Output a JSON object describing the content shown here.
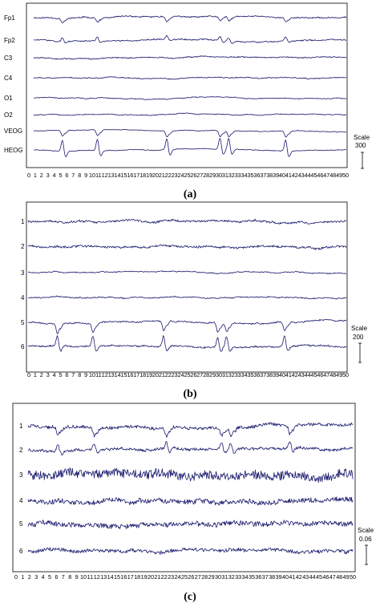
{
  "chart_data": [
    {
      "type": "line",
      "caption": "(a)",
      "channels": [
        "Fp1",
        "Fp2",
        "C3",
        "C4",
        "O1",
        "O2",
        "VEOG",
        "HEOG"
      ],
      "x_ticks": [
        0,
        1,
        2,
        3,
        4,
        5,
        6,
        7,
        8,
        9,
        10,
        11,
        12,
        13,
        14,
        15,
        16,
        17,
        18,
        19,
        20,
        21,
        22,
        23,
        24,
        25,
        26,
        27,
        28,
        29,
        30,
        31,
        32,
        33,
        34,
        35,
        36,
        37,
        38,
        39,
        40,
        41,
        42,
        43,
        44,
        45,
        46,
        47,
        48,
        49,
        50
      ],
      "xlim": [
        0,
        50
      ],
      "scale_label": "Scale",
      "scale_value": "300",
      "artifact_times": [
        4.6,
        10.2,
        21.3,
        29.8,
        31.2,
        40.3
      ],
      "artifact_channels": [
        0,
        1,
        6,
        7
      ],
      "noise_level": [
        0.15,
        0.15,
        0.12,
        0.1,
        0.08,
        0.08,
        0.05,
        0.05
      ],
      "artifact_amp": [
        0.6,
        0.5,
        0.15,
        0.05,
        0.05,
        0.05,
        0.8,
        1.6
      ]
    },
    {
      "type": "line",
      "caption": "(b)",
      "channels": [
        "1",
        "2",
        "3",
        "4",
        "5",
        "6"
      ],
      "x_ticks": [
        0,
        1,
        2,
        3,
        4,
        5,
        6,
        7,
        8,
        9,
        10,
        11,
        12,
        13,
        14,
        15,
        16,
        17,
        18,
        19,
        20,
        21,
        22,
        23,
        24,
        25,
        26,
        27,
        28,
        29,
        30,
        31,
        32,
        33,
        34,
        35,
        36,
        37,
        38,
        39,
        40,
        41,
        42,
        43,
        44,
        45,
        46,
        47,
        48,
        49,
        50
      ],
      "xlim": [
        0,
        50
      ],
      "scale_label": "Scale",
      "scale_value": "200",
      "artifact_times": [
        4.6,
        10.2,
        21.3,
        29.8,
        31.2,
        40.3
      ],
      "artifact_channels": [
        4,
        5
      ],
      "noise_level": [
        0.2,
        0.2,
        0.08,
        0.1,
        0.12,
        0.15
      ],
      "artifact_amp": [
        0,
        0,
        0,
        0,
        0.9,
        1.1
      ]
    },
    {
      "type": "line",
      "caption": "(c)",
      "channels": [
        "1",
        "2",
        "3",
        "4",
        "5",
        "6"
      ],
      "x_ticks": [
        0,
        1,
        2,
        3,
        4,
        5,
        6,
        7,
        8,
        9,
        10,
        11,
        12,
        13,
        14,
        15,
        16,
        17,
        18,
        19,
        20,
        21,
        22,
        23,
        24,
        25,
        26,
        27,
        28,
        29,
        30,
        31,
        32,
        33,
        34,
        35,
        36,
        37,
        38,
        39,
        40,
        41,
        42,
        43,
        44,
        45,
        46,
        47,
        48,
        49,
        50
      ],
      "xlim": [
        0,
        50
      ],
      "scale_label": "Scale",
      "scale_value": "0.06",
      "artifact_times": [
        4.6,
        10.2,
        21.3,
        29.8,
        31.2,
        40.3
      ],
      "artifact_channels": [
        0,
        1
      ],
      "noise_level": [
        0.35,
        0.3,
        1.0,
        0.55,
        0.55,
        0.4
      ],
      "artifact_amp": [
        0.9,
        0.8,
        0.1,
        0.05,
        0.05,
        0.05
      ]
    }
  ]
}
